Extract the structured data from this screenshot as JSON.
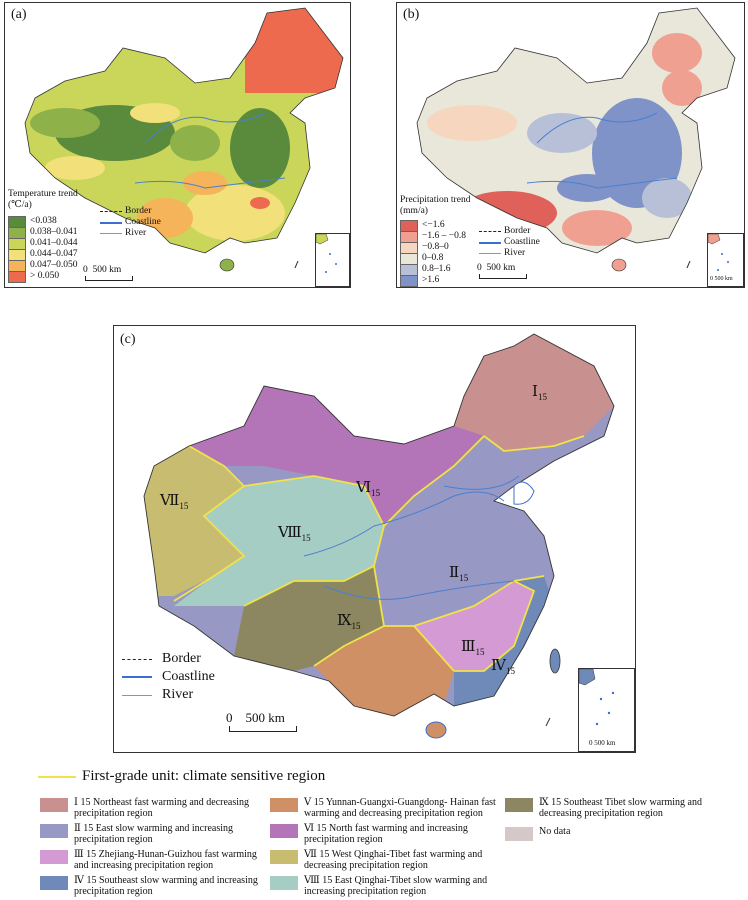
{
  "panel_a": {
    "label": "(a)",
    "legend_title": "Temperature trend (℃/a)",
    "classes": [
      {
        "label": "<0.038",
        "color": "#5a8a3c"
      },
      {
        "label": "0.038–0.041",
        "color": "#8fb14a"
      },
      {
        "label": "0.041–0.044",
        "color": "#c9d65a"
      },
      {
        "label": "0.044–0.047",
        "color": "#f2e07a"
      },
      {
        "label": "0.047–0.050",
        "color": "#f5b35a"
      },
      {
        "label": "> 0.050",
        "color": "#ee6a4f"
      }
    ],
    "lines": {
      "border": "Border",
      "coastline": "Coastline",
      "river": "River"
    },
    "scale": {
      "zero": "0",
      "label": "500 km"
    }
  },
  "panel_b": {
    "label": "(b)",
    "legend_title": "Precipitation trend (mm/a)",
    "classes": [
      {
        "label": "<−1.6",
        "color": "#e0605a"
      },
      {
        "label": "−1.6 – −0.8",
        "color": "#f0a090"
      },
      {
        "label": "−0.8–0",
        "color": "#f7d6c0"
      },
      {
        "label": "0–0.8",
        "color": "#e9e6da"
      },
      {
        "label": "0.8–1.6",
        "color": "#b7c0d6"
      },
      {
        "label": ">1.6",
        "color": "#7f93c8"
      }
    ],
    "lines": {
      "border": "Border",
      "coastline": "Coastline",
      "river": "River"
    },
    "scale": {
      "zero": "0",
      "label": "500 km"
    },
    "inset_scale": "0 500 km"
  },
  "panel_c": {
    "label": "(c)",
    "regions": [
      {
        "roman": "Ⅰ",
        "sub": "15"
      },
      {
        "roman": "Ⅱ",
        "sub": "15"
      },
      {
        "roman": "Ⅲ",
        "sub": "15"
      },
      {
        "roman": "Ⅳ",
        "sub": "15"
      },
      {
        "roman": "Ⅵ",
        "sub": "15"
      },
      {
        "roman": "Ⅶ",
        "sub": "15"
      },
      {
        "roman": "Ⅷ",
        "sub": "15"
      },
      {
        "roman": "Ⅸ",
        "sub": "15"
      }
    ],
    "lines": {
      "border": "Border",
      "coastline": "Coastline",
      "river": "River"
    },
    "scale": {
      "zero": "0",
      "label": "500 km"
    },
    "inset_scale": "0 500 km"
  },
  "bottom_legend": {
    "first_grade": "First-grade unit: climate sensitive region",
    "items": [
      {
        "text": "Ⅰ 15 Northeast fast warming and decreasing precipitation region",
        "color": "#c8908e"
      },
      {
        "text": "Ⅱ 15 East slow warming and increasing precipitation region",
        "color": "#9898c4"
      },
      {
        "text": "Ⅲ 15 Zhejiang-Hunan-Guizhou fast warming and increasing precipitation region",
        "color": "#d49ad4"
      },
      {
        "text": "Ⅳ 15 Southeast slow warming and increasing precipitation region",
        "color": "#6f8ab8"
      },
      {
        "text": "Ⅴ 15 Yunnan-Guangxi-Guangdong- Hainan fast warming and decreasing precipitation region",
        "color": "#cf9066"
      },
      {
        "text": "Ⅵ 15 North fast warming and increasing precipitation region",
        "color": "#b474b8"
      },
      {
        "text": "Ⅶ 15 West Qinghai-Tibet fast warming and decreasing precipitation region",
        "color": "#c8bc70"
      },
      {
        "text": "Ⅷ 15 East Qinghai-Tibet slow warming and increasing precipitation region",
        "color": "#a6cdc4"
      },
      {
        "text": "Ⅸ 15 Southeast Tibet slow warming and decreasing precipitation region",
        "color": "#8c8760"
      },
      {
        "text": "No data",
        "color": "#d4c8c8"
      }
    ]
  }
}
